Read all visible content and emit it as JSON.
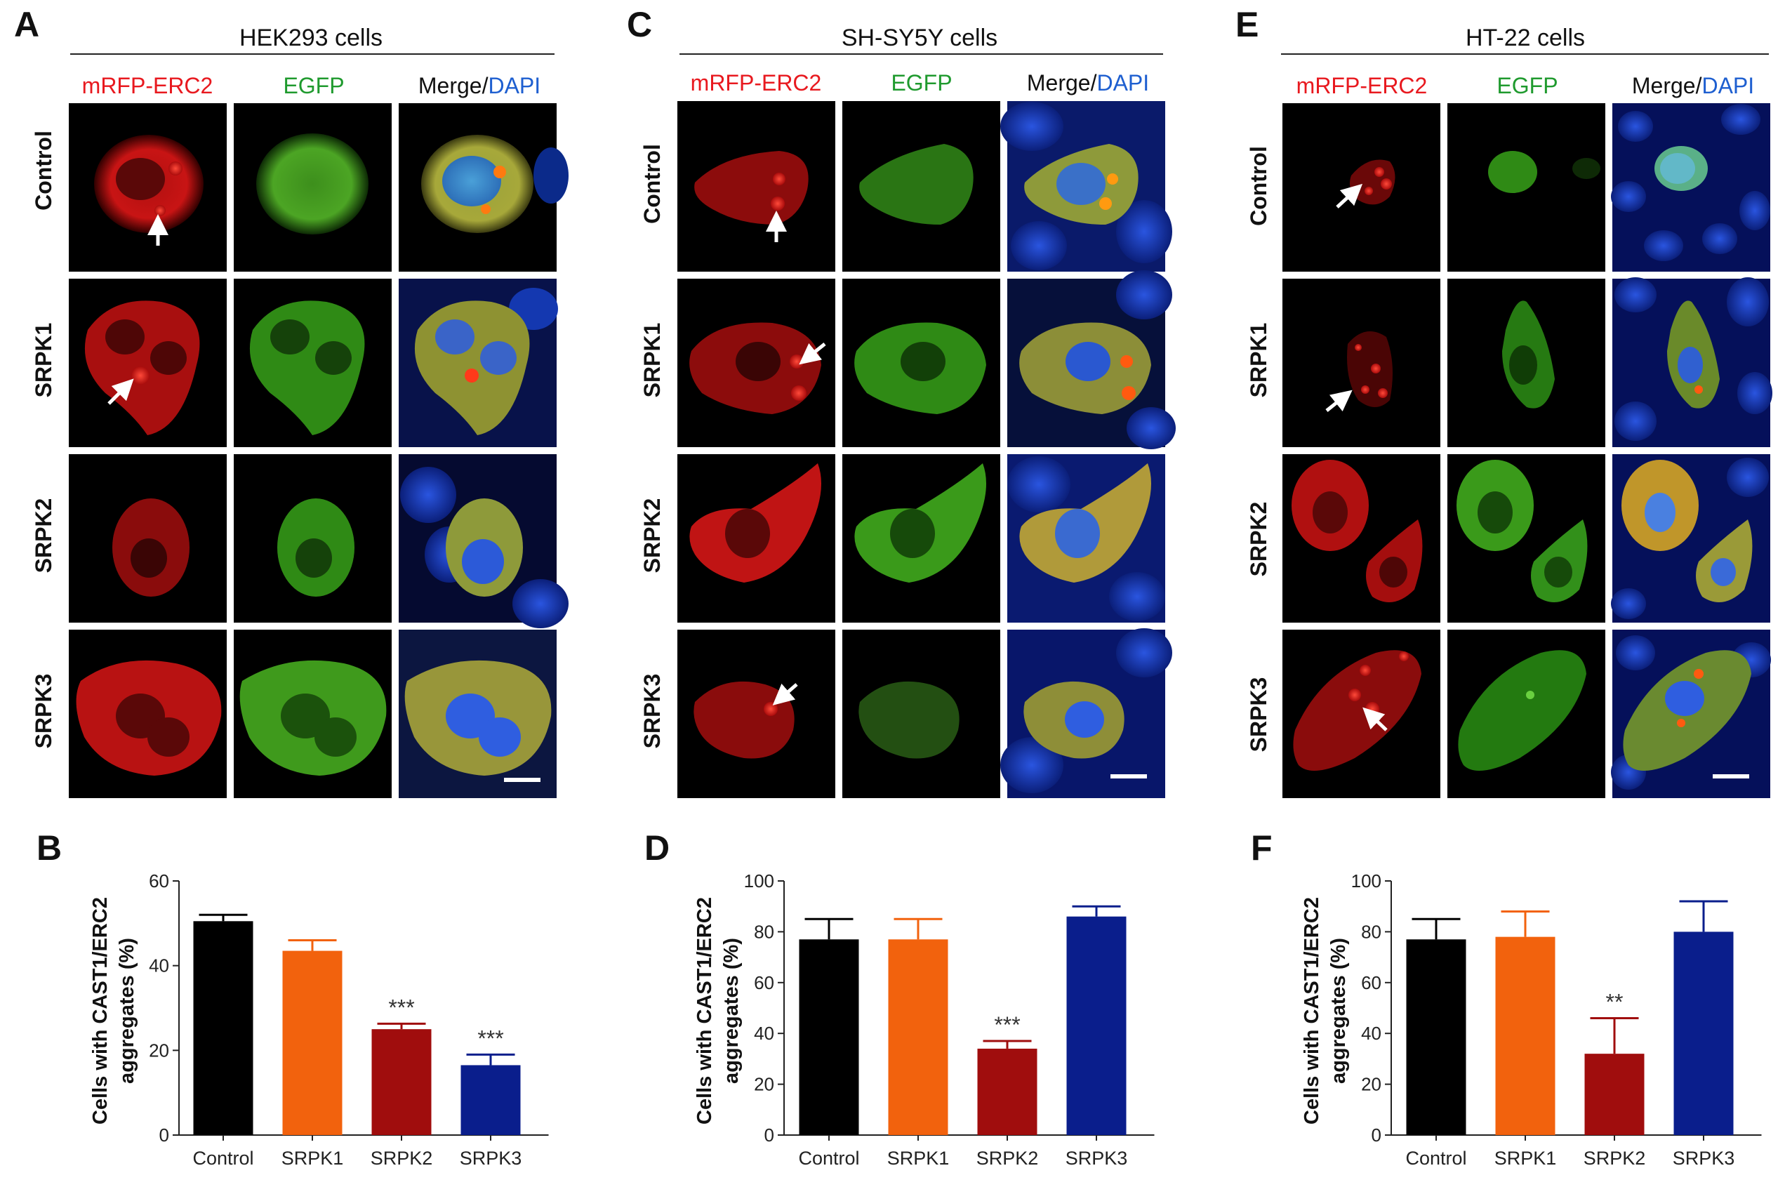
{
  "colors": {
    "red_channel": "#e8191f",
    "green_channel": "#1f9a2e",
    "blue_channel": "#1e5fd0",
    "bar_colors": [
      "#000000",
      "#f2620d",
      "#a00d0d",
      "#0a1e8c"
    ]
  },
  "micrographs": [
    {
      "letter": "A",
      "cell_line": "HEK293 cells",
      "channels": {
        "red": "mRFP-ERC2",
        "green": "EGFP",
        "merge": "Merge/",
        "dapi": "DAPI"
      },
      "rows": [
        "Control",
        "SRPK1",
        "SRPK2",
        "SRPK3"
      ]
    },
    {
      "letter": "C",
      "cell_line": "SH-SY5Y cells",
      "channels": {
        "red": "mRFP-ERC2",
        "green": "EGFP",
        "merge": "Merge/",
        "dapi": "DAPI"
      },
      "rows": [
        "Control",
        "SRPK1",
        "SRPK2",
        "SRPK3"
      ]
    },
    {
      "letter": "E",
      "cell_line": "HT-22 cells",
      "channels": {
        "red": "mRFP-ERC2",
        "green": "EGFP",
        "merge": "Merge/",
        "dapi": "DAPI"
      },
      "rows": [
        "Control",
        "SRPK1",
        "SRPK2",
        "SRPK3"
      ]
    }
  ],
  "chart_data": [
    {
      "letter": "B",
      "type": "bar",
      "ylabel_line1": "Cells with CAST1/ERC2",
      "ylabel_line2": "aggregates (%)",
      "xlabel": "",
      "categories": [
        "Control",
        "SRPK1",
        "SRPK2",
        "SRPK3"
      ],
      "values": [
        50.5,
        43.5,
        25,
        16.5
      ],
      "errors": [
        1.5,
        2.5,
        1.3,
        2.5
      ],
      "significance": [
        "",
        "",
        "***",
        "***"
      ],
      "ylim": [
        0,
        60
      ],
      "yticks": [
        0,
        20,
        40,
        60
      ]
    },
    {
      "letter": "D",
      "type": "bar",
      "ylabel_line1": "Cells with CAST1/ERC2",
      "ylabel_line2": "aggregates (%)",
      "xlabel": "",
      "categories": [
        "Control",
        "SRPK1",
        "SRPK2",
        "SRPK3"
      ],
      "values": [
        77,
        77,
        34,
        86
      ],
      "errors": [
        8,
        8,
        3,
        4
      ],
      "significance": [
        "",
        "",
        "***",
        ""
      ],
      "ylim": [
        0,
        100
      ],
      "yticks": [
        0,
        20,
        40,
        60,
        80,
        100
      ]
    },
    {
      "letter": "F",
      "type": "bar",
      "ylabel_line1": "Cells with CAST1/ERC2",
      "ylabel_line2": "aggregates (%)",
      "xlabel": "",
      "categories": [
        "Control",
        "SRPK1",
        "SRPK2",
        "SRPK3"
      ],
      "values": [
        77,
        78,
        32,
        80
      ],
      "errors": [
        8,
        10,
        14,
        12
      ],
      "significance": [
        "",
        "",
        "**",
        ""
      ],
      "ylim": [
        0,
        100
      ],
      "yticks": [
        0,
        20,
        40,
        60,
        80,
        100
      ]
    }
  ]
}
